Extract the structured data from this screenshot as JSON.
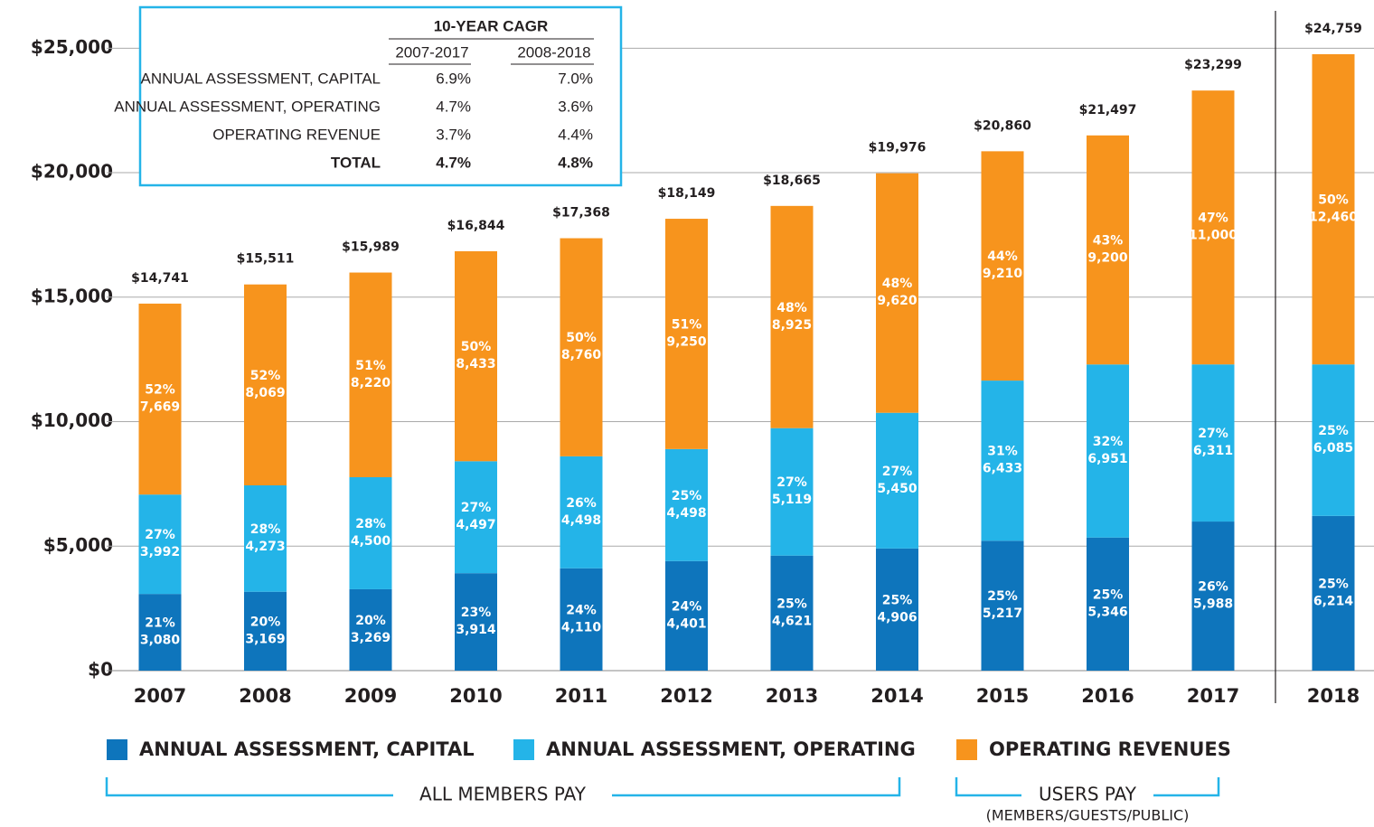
{
  "chart_data": {
    "type": "stacked-bar",
    "categories": [
      "2007",
      "2008",
      "2009",
      "2010",
      "2011",
      "2012",
      "2013",
      "2014",
      "2015",
      "2016",
      "2017",
      "2018"
    ],
    "series": [
      {
        "name": "ANNUAL ASSESSMENT, CAPITAL",
        "color": "#0e75bc",
        "values": [
          3080,
          3169,
          3269,
          3914,
          4110,
          4401,
          4621,
          4906,
          5217,
          5346,
          5988,
          6214
        ],
        "value_labels": [
          "3,080",
          "3,169",
          "3,269",
          "3,914",
          "4,110",
          "4,401",
          "4,621",
          "4,906",
          "5,217",
          "5,346",
          "5,988",
          "6,214"
        ],
        "percents": [
          21,
          20,
          20,
          23,
          24,
          24,
          25,
          25,
          25,
          25,
          26,
          25
        ],
        "percent_labels": [
          "21%",
          "20%",
          "20%",
          "23%",
          "24%",
          "24%",
          "25%",
          "25%",
          "25%",
          "25%",
          "26%",
          "25%"
        ]
      },
      {
        "name": "ANNUAL ASSESSMENT, OPERATING",
        "color": "#24b4e8",
        "values": [
          3992,
          4273,
          4500,
          4497,
          4498,
          4498,
          5119,
          5450,
          6433,
          6951,
          6311,
          6085
        ],
        "value_labels": [
          "3,992",
          "4,273",
          "4,500",
          "4,497",
          "4,498",
          "4,498",
          "5,119",
          "5,450",
          "6,433",
          "6,951",
          "6,311",
          "6,085"
        ],
        "percents": [
          27,
          28,
          28,
          27,
          26,
          25,
          27,
          27,
          31,
          32,
          27,
          25
        ],
        "percent_labels": [
          "27%",
          "28%",
          "28%",
          "27%",
          "26%",
          "25%",
          "27%",
          "27%",
          "31%",
          "32%",
          "27%",
          "25%"
        ]
      },
      {
        "name": "OPERATING REVENUES",
        "color": "#f7941d",
        "values": [
          7669,
          8069,
          8220,
          8433,
          8760,
          9250,
          8925,
          9620,
          9210,
          9200,
          11000,
          12460
        ],
        "value_labels": [
          "7,669",
          "8,069",
          "8,220",
          "8,433",
          "8,760",
          "9,250",
          "8,925",
          "9,620",
          "9,210",
          "9,200",
          "11,000",
          "12,460"
        ],
        "percents": [
          52,
          52,
          51,
          50,
          50,
          51,
          48,
          48,
          44,
          43,
          47,
          50
        ],
        "percent_labels": [
          "52%",
          "52%",
          "51%",
          "50%",
          "50%",
          "51%",
          "48%",
          "48%",
          "44%",
          "43%",
          "47%",
          "50%"
        ]
      }
    ],
    "totals": [
      14741,
      15511,
      15989,
      16844,
      17368,
      18149,
      18665,
      19976,
      20860,
      21497,
      23299,
      24759
    ],
    "total_labels": [
      "$14,741",
      "$15,511",
      "$15,989",
      "$16,844",
      "$17,368",
      "$18,149",
      "$18,665",
      "$19,976",
      "$20,860",
      "$21,497",
      "$23,299",
      "$24,759"
    ],
    "ylim": [
      0,
      26500
    ],
    "yticks": [
      {
        "value": 0,
        "label": "$0"
      },
      {
        "value": 5000,
        "label": "$5,000"
      },
      {
        "value": 10000,
        "label": "$10,000"
      },
      {
        "value": 15000,
        "label": "$15,000"
      },
      {
        "value": 20000,
        "label": "$20,000"
      },
      {
        "value": 25000,
        "label": "$25,000"
      }
    ],
    "grid": true,
    "table": {
      "title": "10-YEAR CAGR",
      "columns": [
        "2007-2017",
        "2008-2018"
      ],
      "rows": [
        {
          "label": "ANNUAL ASSESSMENT, CAPITAL",
          "values": [
            "6.9%",
            "7.0%"
          ]
        },
        {
          "label": "ANNUAL ASSESSMENT, OPERATING",
          "values": [
            "4.7%",
            "3.6%"
          ]
        },
        {
          "label": "OPERATING REVENUE",
          "values": [
            "3.7%",
            "4.4%"
          ]
        },
        {
          "label": "TOTAL",
          "values": [
            "4.7%",
            "4.8%"
          ]
        }
      ]
    },
    "groups": [
      {
        "label": "ALL MEMBERS PAY"
      },
      {
        "label": "USERS PAY",
        "sublabel": "(MEMBERS/GUESTS/PUBLIC)"
      }
    ]
  }
}
